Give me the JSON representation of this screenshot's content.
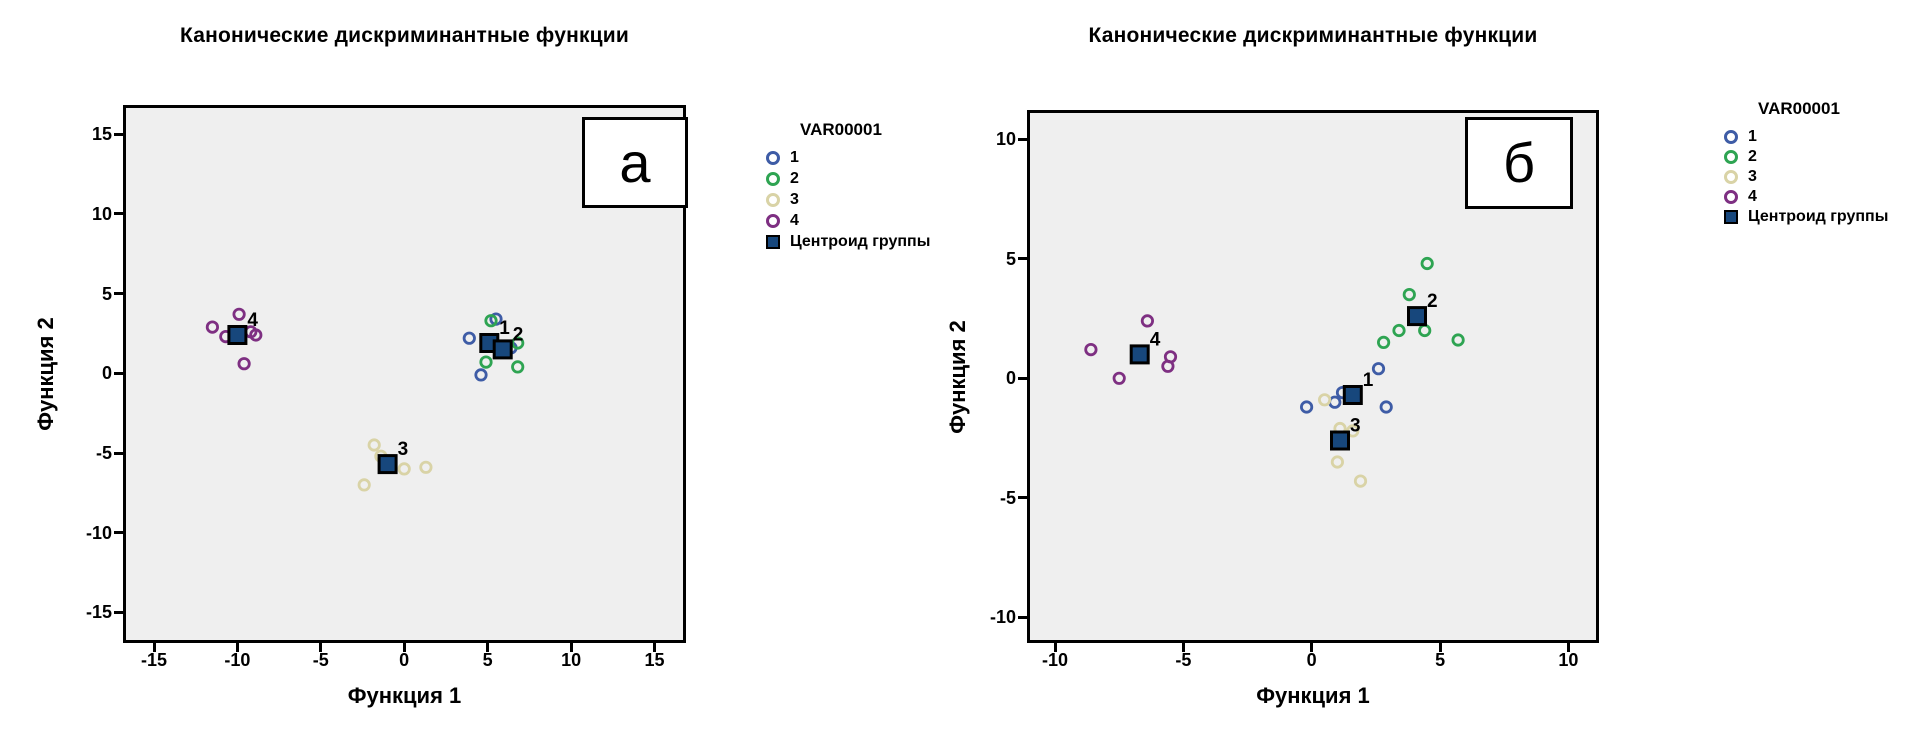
{
  "colors": {
    "page_bg": "#ffffff",
    "plot_bg": "#efefef",
    "frame": "#000000",
    "group1": "#3e5ca6",
    "group2": "#2ea452",
    "group3": "#d9d3a6",
    "group4": "#7e2f82",
    "centroid": "#17477c"
  },
  "chart_data": [
    {
      "id": "a",
      "type": "scatter",
      "panel_label": "а",
      "title": "Канонические дискриминантные функции",
      "xlabel": "Функция 1",
      "ylabel": "Функция 2",
      "xlim": [
        -16.86,
        16.89
      ],
      "ylim": [
        -16.92,
        16.83
      ],
      "x_ticks": [
        -15,
        -10,
        -5,
        0,
        5,
        10,
        15
      ],
      "y_ticks": [
        15,
        10,
        5,
        0,
        -5,
        -10,
        -15
      ],
      "grid": false,
      "legend": {
        "title": "VAR00001",
        "items": [
          {
            "label": "1",
            "color": "#3e5ca6"
          },
          {
            "label": "2",
            "color": "#2ea452"
          },
          {
            "label": "3",
            "color": "#d9d3a6"
          },
          {
            "label": "4",
            "color": "#7e2f82"
          }
        ],
        "centroid": {
          "label": "Центроид группы",
          "fill": "#17477c"
        }
      },
      "series": [
        {
          "name": "1",
          "color": "#3e5ca6",
          "points": [
            [
              3.9,
              2.2
            ],
            [
              5.5,
              3.4
            ],
            [
              4.6,
              -0.1
            ],
            [
              6.4,
              1.6
            ]
          ]
        },
        {
          "name": "2",
          "color": "#2ea452",
          "points": [
            [
              5.2,
              3.3
            ],
            [
              6.8,
              1.9
            ],
            [
              4.9,
              0.7
            ],
            [
              6.8,
              0.4
            ]
          ]
        },
        {
          "name": "3",
          "color": "#d9d3a6",
          "points": [
            [
              -1.8,
              -4.5
            ],
            [
              -1.4,
              -5.2
            ],
            [
              0.0,
              -6.0
            ],
            [
              1.3,
              -5.9
            ],
            [
              -2.4,
              -7.0
            ]
          ]
        },
        {
          "name": "4",
          "color": "#7e2f82",
          "points": [
            [
              -9.9,
              3.7
            ],
            [
              -11.5,
              2.9
            ],
            [
              -10.7,
              2.3
            ],
            [
              -9.2,
              2.6
            ],
            [
              -8.9,
              2.4
            ],
            [
              -9.6,
              0.6
            ]
          ]
        }
      ],
      "centroids": [
        {
          "label": "1",
          "x": 5.1,
          "y": 1.9
        },
        {
          "label": "2",
          "x": 5.9,
          "y": 1.5
        },
        {
          "label": "3",
          "x": -1.0,
          "y": -5.7
        },
        {
          "label": "4",
          "x": -10.0,
          "y": 2.4
        }
      ]
    },
    {
      "id": "b",
      "type": "scatter",
      "panel_label": "б",
      "title": "Канонические дискриминантные функции",
      "xlabel": "Функция 1",
      "ylabel": "Функция 2",
      "xlim": [
        -11.09,
        11.19
      ],
      "ylim": [
        -11.07,
        11.22
      ],
      "x_ticks": [
        -10,
        -5,
        0,
        5,
        10
      ],
      "y_ticks": [
        10,
        5,
        0,
        -5,
        -10
      ],
      "grid": false,
      "legend": {
        "title": "VAR00001",
        "items": [
          {
            "label": "1",
            "color": "#3e5ca6"
          },
          {
            "label": "2",
            "color": "#2ea452"
          },
          {
            "label": "3",
            "color": "#d9d3a6"
          },
          {
            "label": "4",
            "color": "#7e2f82"
          }
        ],
        "centroid": {
          "label": "Центроид группы",
          "fill": "#17477c"
        }
      },
      "series": [
        {
          "name": "1",
          "color": "#3e5ca6",
          "points": [
            [
              2.6,
              0.4
            ],
            [
              1.2,
              -0.6
            ],
            [
              0.9,
              -1.0
            ],
            [
              -0.2,
              -1.2
            ],
            [
              2.9,
              -1.2
            ]
          ]
        },
        {
          "name": "2",
          "color": "#2ea452",
          "points": [
            [
              4.5,
              4.8
            ],
            [
              3.8,
              3.5
            ],
            [
              3.4,
              2.0
            ],
            [
              2.8,
              1.5
            ],
            [
              4.4,
              2.0
            ],
            [
              5.7,
              1.6
            ]
          ]
        },
        {
          "name": "3",
          "color": "#d9d3a6",
          "points": [
            [
              0.5,
              -0.9
            ],
            [
              1.1,
              -2.1
            ],
            [
              1.6,
              -2.2
            ],
            [
              1.0,
              -3.5
            ],
            [
              1.9,
              -4.3
            ]
          ]
        },
        {
          "name": "4",
          "color": "#7e2f82",
          "points": [
            [
              -6.4,
              2.4
            ],
            [
              -8.6,
              1.2
            ],
            [
              -5.5,
              0.9
            ],
            [
              -5.6,
              0.5
            ],
            [
              -7.5,
              0.0
            ]
          ]
        }
      ],
      "centroids": [
        {
          "label": "1",
          "x": 1.6,
          "y": -0.7
        },
        {
          "label": "2",
          "x": 4.1,
          "y": 2.6
        },
        {
          "label": "3",
          "x": 1.1,
          "y": -2.6
        },
        {
          "label": "4",
          "x": -6.7,
          "y": 1.0
        }
      ]
    }
  ]
}
